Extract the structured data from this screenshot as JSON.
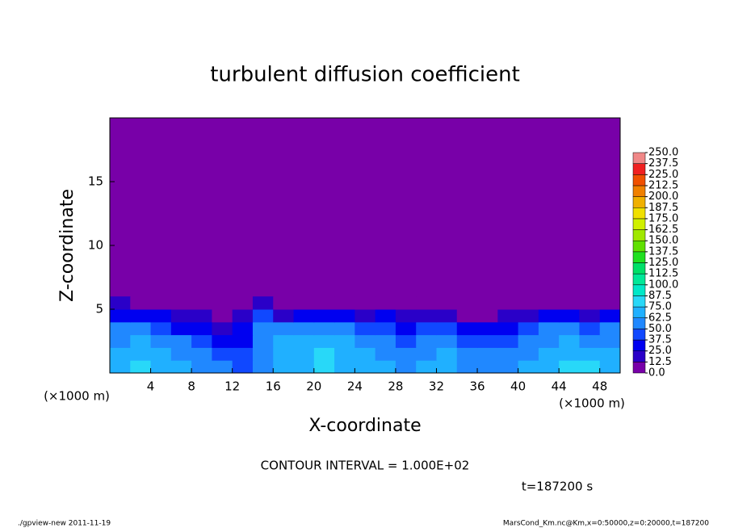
{
  "chart_data": {
    "type": "heatmap",
    "title": "turbulent diffusion coefficient",
    "x_label": "X-coordinate",
    "y_label": "Z-coordinate",
    "x_unit": "(×1000 m)",
    "x_unit_right": "(×1000 m)",
    "xlim": [
      0,
      50
    ],
    "ylim": [
      0,
      20
    ],
    "xticks": [
      4,
      8,
      12,
      16,
      20,
      24,
      28,
      32,
      36,
      40,
      44,
      48
    ],
    "yticks": [
      5,
      10,
      15
    ],
    "levels": [
      {
        "value": 0,
        "label": "0.0"
      },
      {
        "value": 12.5,
        "label": "12.5"
      },
      {
        "value": 25,
        "label": "25.0"
      },
      {
        "value": 37.5,
        "label": "37.5"
      },
      {
        "value": 50,
        "label": "50.0"
      },
      {
        "value": 62.5,
        "label": "62.5"
      },
      {
        "value": 75,
        "label": "75.0"
      },
      {
        "value": 87.5,
        "label": "87.5"
      },
      {
        "value": 100,
        "label": "100.0"
      },
      {
        "value": 112.5,
        "label": "112.5"
      },
      {
        "value": 125,
        "label": "125.0"
      },
      {
        "value": 137.5,
        "label": "137.5"
      },
      {
        "value": 150,
        "label": "150.0"
      },
      {
        "value": 162.5,
        "label": "162.5"
      },
      {
        "value": 175,
        "label": "175.0"
      },
      {
        "value": 187.5,
        "label": "187.5"
      },
      {
        "value": 200,
        "label": "200.0"
      },
      {
        "value": 212.5,
        "label": "212.5"
      },
      {
        "value": 225,
        "label": "225.0"
      },
      {
        "value": 237.5,
        "label": "237.5"
      },
      {
        "value": 250,
        "label": "250.0"
      }
    ],
    "colors": [
      "#7800a8",
      "#2a00c8",
      "#0000f0",
      "#1048ff",
      "#2088ff",
      "#20b0ff",
      "#28d8f8",
      "#00e8c8",
      "#00e898",
      "#00e068",
      "#20e020",
      "#60e000",
      "#a0e800",
      "#d0f000",
      "#f0e000",
      "#f0b000",
      "#f08000",
      "#f05000",
      "#f02020",
      "#f08888"
    ],
    "field": {
      "x_bins": [
        0,
        2,
        4,
        6,
        8,
        10,
        12,
        14,
        16,
        18,
        20,
        22,
        24,
        26,
        28,
        30,
        32,
        34,
        36,
        38,
        40,
        42,
        44,
        46,
        48,
        50
      ],
      "z_bins": [
        0,
        1,
        2,
        3,
        4,
        5,
        6
      ],
      "values": [
        [
          70,
          75,
          70,
          65,
          60,
          55,
          45,
          60,
          70,
          65,
          75,
          70,
          70,
          65,
          60,
          65,
          70,
          60,
          55,
          60,
          65,
          70,
          75,
          80,
          70
        ],
        [
          65,
          70,
          65,
          60,
          50,
          40,
          40,
          55,
          65,
          70,
          75,
          70,
          65,
          60,
          55,
          60,
          65,
          55,
          50,
          55,
          60,
          65,
          70,
          70,
          65
        ],
        [
          60,
          65,
          55,
          50,
          40,
          30,
          35,
          50,
          65,
          70,
          70,
          65,
          60,
          50,
          45,
          50,
          55,
          45,
          40,
          45,
          55,
          60,
          65,
          60,
          60
        ],
        [
          50,
          55,
          45,
          35,
          30,
          20,
          30,
          55,
          50,
          55,
          60,
          50,
          45,
          40,
          35,
          40,
          40,
          30,
          30,
          35,
          40,
          50,
          55,
          45,
          50
        ],
        [
          35,
          30,
          25,
          20,
          15,
          10,
          20,
          40,
          20,
          25,
          30,
          25,
          20,
          30,
          15,
          15,
          15,
          10,
          10,
          15,
          20,
          25,
          30,
          20,
          25
        ],
        [
          15,
          10,
          5,
          5,
          5,
          0,
          5,
          20,
          5,
          5,
          5,
          5,
          5,
          10,
          5,
          0,
          0,
          0,
          0,
          5,
          5,
          10,
          10,
          5,
          10
        ]
      ]
    },
    "contour_interval": "CONTOUR INTERVAL = 1.000E+02",
    "time": "t=187200 s",
    "footer_left": "./gpview-new  2011-11-19",
    "footer_right": "MarsCond_Km.nc@Km,x=0:50000,z=0:20000,t=187200"
  }
}
